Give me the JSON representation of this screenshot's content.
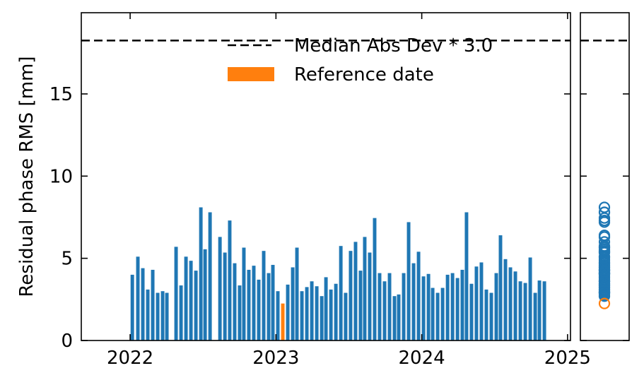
{
  "chart_data": {
    "type": "bar",
    "ylabel": "Residual phase RMS [mm]",
    "x": [
      2022.015,
      2022.053,
      2022.087,
      2022.121,
      2022.155,
      2022.189,
      2022.223,
      2022.252,
      2022.315,
      2022.349,
      2022.383,
      2022.417,
      2022.451,
      2022.485,
      2022.514,
      2022.548,
      2022.616,
      2022.65,
      2022.683,
      2022.717,
      2022.751,
      2022.78,
      2022.814,
      2022.848,
      2022.882,
      2022.916,
      2022.95,
      2022.979,
      2023.013,
      2023.081,
      2023.115,
      2023.144,
      2023.178,
      2023.212,
      2023.246,
      2023.28,
      2023.314,
      2023.343,
      2023.377,
      2023.411,
      2023.445,
      2023.478,
      2023.512,
      2023.546,
      2023.58,
      2023.609,
      2023.643,
      2023.677,
      2023.711,
      2023.745,
      2023.779,
      2023.813,
      2023.842,
      2023.876,
      2023.91,
      2023.944,
      2023.978,
      2024.012,
      2024.046,
      2024.075,
      2024.109,
      2024.143,
      2024.177,
      2024.211,
      2024.245,
      2024.278,
      2024.307,
      2024.341,
      2024.375,
      2024.409,
      2024.443,
      2024.477,
      2024.511,
      2024.54,
      2024.574,
      2024.608,
      2024.642,
      2024.676,
      2024.71,
      2024.744,
      2024.778,
      2024.807,
      2024.841
    ],
    "series": [
      {
        "color": "#1f77b4",
        "values": [
          4.0,
          5.1,
          4.4,
          3.1,
          4.3,
          2.9,
          3.0,
          2.9,
          5.7,
          3.35,
          5.1,
          4.85,
          4.25,
          8.1,
          5.55,
          7.8,
          6.3,
          5.35,
          7.3,
          4.7,
          3.35,
          5.65,
          4.3,
          4.55,
          3.7,
          5.45,
          4.1,
          4.6,
          3.0,
          3.4,
          4.45,
          5.65,
          3.0,
          3.25,
          3.6,
          3.3,
          2.7,
          3.85,
          3.1,
          3.45,
          5.75,
          2.9,
          5.45,
          6.0,
          4.25,
          6.3,
          5.35,
          7.45,
          4.1,
          3.6,
          4.1,
          2.7,
          2.8,
          4.1,
          7.2,
          4.7,
          5.4,
          3.9,
          4.05,
          3.2,
          2.9,
          3.2,
          4.0,
          4.1,
          3.8,
          4.3,
          7.8,
          3.45,
          4.5,
          4.75,
          3.1,
          2.9,
          4.1,
          6.4,
          4.95,
          4.45,
          4.2,
          3.6,
          3.5,
          5.05,
          2.9,
          3.65,
          3.6
        ]
      },
      {
        "name": "Reference date",
        "color": "#ff7f0e",
        "x": [
          2023.047
        ],
        "values": [
          2.25
        ]
      }
    ],
    "hlines": [
      {
        "name": "Median Abs Dev * 3.0",
        "value": 18.25,
        "color": "#000000",
        "style": "dashed"
      }
    ],
    "xlim": [
      2021.665,
      2025.02
    ],
    "xticks": [
      2022,
      2023,
      2024,
      2025
    ],
    "ylim": [
      0,
      19.94
    ],
    "yticks": [
      0,
      5,
      10,
      15
    ],
    "legend": "upper right"
  }
}
